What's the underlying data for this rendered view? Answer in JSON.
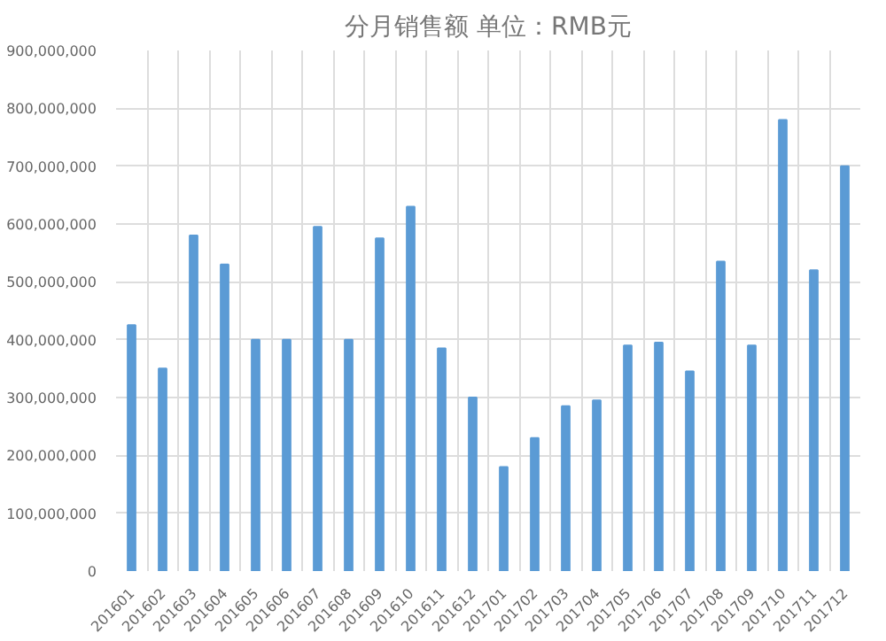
{
  "chart_data": {
    "type": "bar",
    "title": "分月销售额 单位：RMB元",
    "categories": [
      "201601",
      "201602",
      "201603",
      "201604",
      "201605",
      "201606",
      "201607",
      "201608",
      "201609",
      "201610",
      "201611",
      "201612",
      "201701",
      "201702",
      "201703",
      "201704",
      "201705",
      "201706",
      "201707",
      "201708",
      "201709",
      "201710",
      "201711",
      "201712"
    ],
    "values": [
      425000000,
      350000000,
      580000000,
      530000000,
      400000000,
      400000000,
      595000000,
      400000000,
      575000000,
      630000000,
      385000000,
      300000000,
      180000000,
      230000000,
      285000000,
      295000000,
      390000000,
      395000000,
      345000000,
      535000000,
      390000000,
      780000000,
      520000000,
      700000000
    ],
    "color": "#5b9bd5",
    "ylim": [
      0,
      900000000
    ],
    "yticks": [
      {
        "value": 0,
        "label": "0"
      },
      {
        "value": 100000000,
        "label": "100,000,000"
      },
      {
        "value": 200000000,
        "label": "200,000,000"
      },
      {
        "value": 300000000,
        "label": "300,000,000"
      },
      {
        "value": 400000000,
        "label": "400,000,000"
      },
      {
        "value": 500000000,
        "label": "500,000,000"
      },
      {
        "value": 600000000,
        "label": "600,000,000"
      },
      {
        "value": 700000000,
        "label": "700,000,000"
      },
      {
        "value": 800000000,
        "label": "800,000,000"
      },
      {
        "value": 900000000,
        "label": "900,000,000"
      }
    ],
    "grid": true
  }
}
